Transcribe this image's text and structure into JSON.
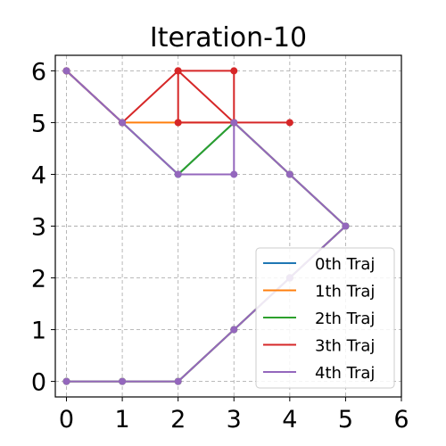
{
  "chart_data": {
    "type": "line",
    "title": "Iteration-10",
    "xlabel": "",
    "ylabel": "",
    "xlim": [
      -0.2,
      6
    ],
    "ylim": [
      -0.3,
      6.3
    ],
    "xticks": [
      "0",
      "1",
      "2",
      "3",
      "4",
      "5",
      "6"
    ],
    "yticks": [
      "0",
      "1",
      "2",
      "3",
      "4",
      "5",
      "6"
    ],
    "grid": true,
    "legend_position": "bottom-right",
    "series": [
      {
        "name": "0th Traj",
        "color": "#1f77b4",
        "x": [
          0,
          1,
          2,
          3,
          4,
          5,
          4,
          3,
          2,
          1,
          0
        ],
        "y": [
          0,
          0,
          0,
          1,
          2,
          3,
          4,
          5,
          4,
          5,
          6
        ]
      },
      {
        "name": "1th Traj",
        "color": "#ff7f0e",
        "x": [
          0,
          1,
          2,
          3,
          4,
          5,
          4,
          3,
          2,
          1,
          0
        ],
        "y": [
          0,
          0,
          0,
          1,
          2,
          3,
          4,
          5,
          5,
          5,
          6
        ]
      },
      {
        "name": "2th Traj",
        "color": "#2ca02c",
        "x": [
          0,
          1,
          2,
          3,
          4,
          5,
          4,
          3,
          2,
          1,
          0
        ],
        "y": [
          0,
          0,
          0,
          1,
          2,
          3,
          4,
          5,
          4,
          5,
          6
        ]
      },
      {
        "name": "3th Traj",
        "color": "#d62728",
        "x": [
          4,
          3,
          3,
          2,
          2,
          3,
          2,
          1,
          0
        ],
        "y": [
          5,
          5,
          6,
          6,
          5,
          5,
          6,
          5,
          6
        ]
      },
      {
        "name": "4th Traj",
        "color": "#9467bd",
        "x": [
          0,
          1,
          2,
          3,
          4,
          5,
          4,
          3,
          3,
          2,
          1,
          0
        ],
        "y": [
          0,
          0,
          0,
          1,
          2,
          3,
          4,
          5,
          4,
          4,
          5,
          6
        ]
      }
    ]
  }
}
